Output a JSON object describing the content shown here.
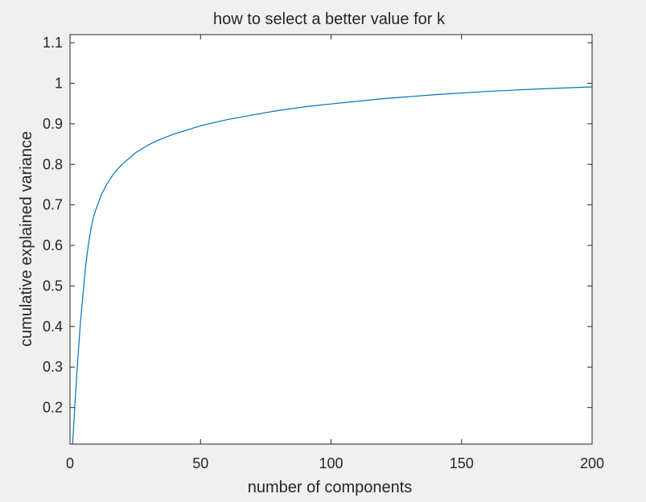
{
  "chart_data": {
    "type": "line",
    "title": "how to select a better value for k",
    "xlabel": "number of components",
    "ylabel": "cumulative explained variance",
    "xlim": [
      0,
      200
    ],
    "ylim": [
      0.11,
      1.12
    ],
    "xticks": [
      0,
      50,
      100,
      150,
      200
    ],
    "xtick_labels": [
      "0",
      "50",
      "100",
      "150",
      "200"
    ],
    "yticks": [
      0.2,
      0.3,
      0.4,
      0.5,
      0.6,
      0.7,
      0.8,
      0.9,
      1.0,
      1.1
    ],
    "ytick_labels": [
      "0.2",
      "0.3",
      "0.4",
      "0.5",
      "0.6",
      "0.7",
      "0.8",
      "0.9",
      "1",
      "1.1"
    ],
    "grid": false,
    "series": [
      {
        "color": "#0072bd",
        "x": [
          1,
          2,
          3,
          4,
          5,
          6,
          7,
          8,
          9,
          10,
          12,
          14,
          16,
          18,
          20,
          25,
          30,
          35,
          40,
          50,
          60,
          70,
          80,
          90,
          100,
          120,
          140,
          160,
          180,
          200
        ],
        "y": [
          0.11,
          0.22,
          0.32,
          0.41,
          0.48,
          0.55,
          0.6,
          0.64,
          0.67,
          0.69,
          0.725,
          0.75,
          0.77,
          0.787,
          0.8,
          0.828,
          0.848,
          0.863,
          0.875,
          0.895,
          0.91,
          0.922,
          0.933,
          0.942,
          0.949,
          0.962,
          0.972,
          0.98,
          0.986,
          0.991
        ]
      }
    ]
  }
}
